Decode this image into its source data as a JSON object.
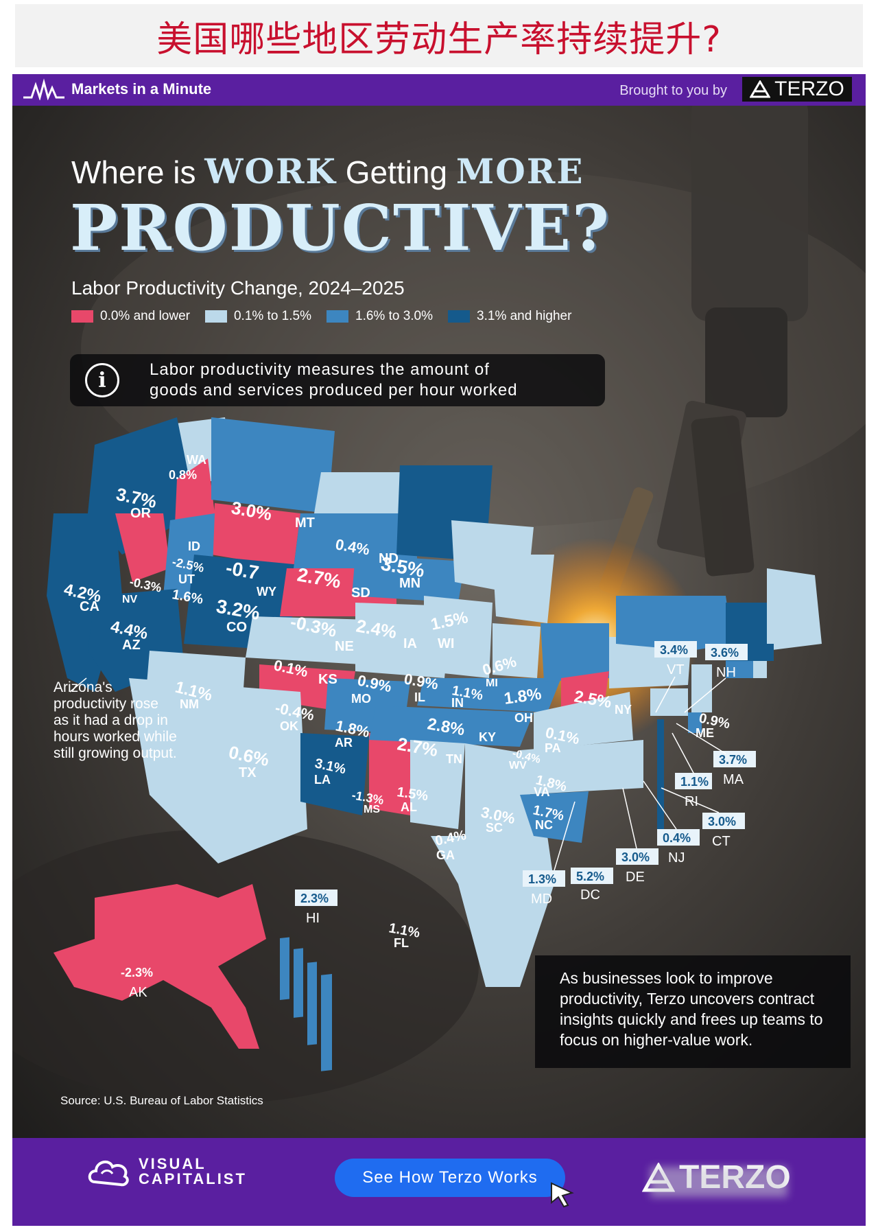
{
  "caption": "美国哪些地区劳动生产率持续提升?",
  "header": {
    "brand": "Markets in a Minute",
    "brought_by": "Brought to you by",
    "sponsor": "TERZO"
  },
  "title": {
    "part1": "Where is ",
    "part2": "WORK",
    "part3": " Getting ",
    "part4": "MORE",
    "line2": "PRODUCTIVE?"
  },
  "subtitle": "Labor Productivity Change, 2024–2025",
  "legend": [
    {
      "label": "0.0% and lower",
      "color": "#e8486a"
    },
    {
      "label": "0.1% to 1.5%",
      "color": "#bcd9ea"
    },
    {
      "label": "1.6% to 3.0%",
      "color": "#3d86c0"
    },
    {
      "label": "3.1% and higher",
      "color": "#155a8c"
    }
  ],
  "info": {
    "line1": "Labor productivity measures the amount of",
    "line2": "goods and services produced per hour worked"
  },
  "map_data": {
    "states": [
      {
        "abbr": "WA",
        "value": "0.8%"
      },
      {
        "abbr": "OR",
        "value": "3.7%"
      },
      {
        "abbr": "CA",
        "value": "4.2%"
      },
      {
        "abbr": "NV",
        "value": "-0.3%"
      },
      {
        "abbr": "ID",
        "value": "-2.5%"
      },
      {
        "abbr": "MT",
        "value": "3.0%"
      },
      {
        "abbr": "WY",
        "value": "-0.7"
      },
      {
        "abbr": "UT",
        "value": "1.6%"
      },
      {
        "abbr": "AZ",
        "value": "4.4%"
      },
      {
        "abbr": "CO",
        "value": "3.2%"
      },
      {
        "abbr": "NM",
        "value": "1.1%"
      },
      {
        "abbr": "ND",
        "value": "0.4%"
      },
      {
        "abbr": "SD",
        "value": "2.7%"
      },
      {
        "abbr": "NE",
        "value": "-0.3%"
      },
      {
        "abbr": "KS",
        "value": "0.1%"
      },
      {
        "abbr": "OK",
        "value": "-0.4%"
      },
      {
        "abbr": "TX",
        "value": "0.6%"
      },
      {
        "abbr": "MN",
        "value": "3.5%"
      },
      {
        "abbr": "IA",
        "value": "2.4%"
      },
      {
        "abbr": "MO",
        "value": "0.9%"
      },
      {
        "abbr": "AR",
        "value": "1.8%"
      },
      {
        "abbr": "LA",
        "value": "3.1%"
      },
      {
        "abbr": "WI",
        "value": "1.5%"
      },
      {
        "abbr": "IL",
        "value": "0.9%"
      },
      {
        "abbr": "MS",
        "value": "-1.3%"
      },
      {
        "abbr": "MI",
        "value": "0.6%"
      },
      {
        "abbr": "IN",
        "value": "1.1%"
      },
      {
        "abbr": "KY",
        "value": "2.8%"
      },
      {
        "abbr": "TN",
        "value": "2.7%"
      },
      {
        "abbr": "AL",
        "value": "1.5%"
      },
      {
        "abbr": "GA",
        "value": "0.4%"
      },
      {
        "abbr": "FL",
        "value": "1.1%"
      },
      {
        "abbr": "OH",
        "value": "1.8%"
      },
      {
        "abbr": "WV",
        "value": "-0.4%"
      },
      {
        "abbr": "VA",
        "value": "1.8%"
      },
      {
        "abbr": "NC",
        "value": "1.7%"
      },
      {
        "abbr": "SC",
        "value": "3.0%"
      },
      {
        "abbr": "PA",
        "value": "0.1%"
      },
      {
        "abbr": "NY",
        "value": "2.5%"
      },
      {
        "abbr": "ME",
        "value": "0.9%"
      },
      {
        "abbr": "VT",
        "value": "3.4%"
      },
      {
        "abbr": "NH",
        "value": "3.6%"
      },
      {
        "abbr": "MA",
        "value": "3.7%"
      },
      {
        "abbr": "RI",
        "value": "1.1%"
      },
      {
        "abbr": "CT",
        "value": "3.0%"
      },
      {
        "abbr": "NJ",
        "value": "0.4%"
      },
      {
        "abbr": "DE",
        "value": "3.0%"
      },
      {
        "abbr": "MD",
        "value": "1.3%"
      },
      {
        "abbr": "DC",
        "value": "5.2%"
      },
      {
        "abbr": "HI",
        "value": "2.3%"
      },
      {
        "abbr": "AK",
        "value": "-2.3%"
      }
    ]
  },
  "note_az": "Arizona's productivity rose as it had a drop in hours worked while still growing output.",
  "note_terzo": "As businesses look to improve productivity, Terzo uncovers contract insights quickly and frees up teams to focus on higher-value work.",
  "source": "Source: U.S. Bureau of Labor Statistics",
  "footer": {
    "vc_line1": "VISUAL",
    "vc_line2": "CAPITALIST",
    "cta": "See How Terzo Works",
    "terzo": "TERZO"
  }
}
